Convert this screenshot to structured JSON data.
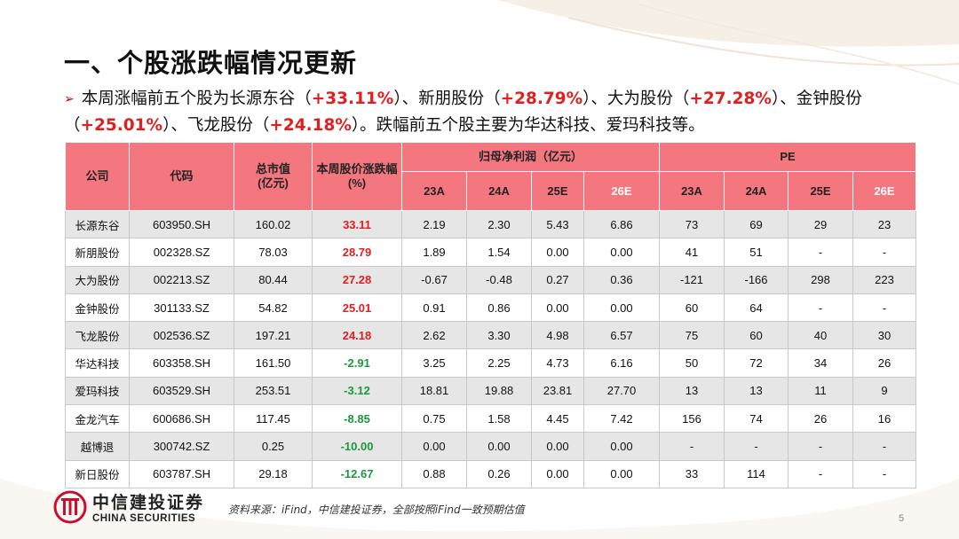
{
  "title": "一、个股涨跌幅情况更新",
  "summary": {
    "bullet": "➢",
    "p1": "本周涨幅前五个股为长源东谷（",
    "v1": "+33.11%",
    "p2": "）、新朋股份（",
    "v2": "+28.79%",
    "p3": "）、大为股份（",
    "v3": "+27.28%",
    "p4": "）、金钟股份（",
    "v4": "+25.01%",
    "p5": "）、飞龙股份（",
    "v5": "+24.18%",
    "p6": "）。跌幅前五个股主要为华达科技、爱玛科技等。"
  },
  "table": {
    "headers": {
      "company": "公司",
      "code": "代码",
      "mktcap": "总市值\n(亿元)",
      "change": "本周股价涨跌幅\n(%)",
      "profit": "归母净利润（亿元）",
      "pe": "PE",
      "years": [
        "23A",
        "24A",
        "25E",
        "26E"
      ]
    },
    "rows": [
      {
        "name": "长源东谷",
        "code": "603950.SH",
        "mktcap": "160.02",
        "change": "33.11",
        "dir": "up",
        "p23": "2.19",
        "p24": "2.30",
        "p25": "5.43",
        "p26": "6.86",
        "pe23": "73",
        "pe24": "69",
        "pe25": "29",
        "pe26": "23"
      },
      {
        "name": "新朋股份",
        "code": "002328.SZ",
        "mktcap": "78.03",
        "change": "28.79",
        "dir": "up",
        "p23": "1.89",
        "p24": "1.54",
        "p25": "0.00",
        "p26": "0.00",
        "pe23": "41",
        "pe24": "51",
        "pe25": "-",
        "pe26": "-"
      },
      {
        "name": "大为股份",
        "code": "002213.SZ",
        "mktcap": "80.44",
        "change": "27.28",
        "dir": "up",
        "p23": "-0.67",
        "p24": "-0.48",
        "p25": "0.27",
        "p26": "0.36",
        "pe23": "-121",
        "pe24": "-166",
        "pe25": "298",
        "pe26": "223"
      },
      {
        "name": "金钟股份",
        "code": "301133.SZ",
        "mktcap": "54.82",
        "change": "25.01",
        "dir": "up",
        "p23": "0.91",
        "p24": "0.86",
        "p25": "0.00",
        "p26": "0.00",
        "pe23": "60",
        "pe24": "64",
        "pe25": "-",
        "pe26": "-"
      },
      {
        "name": "飞龙股份",
        "code": "002536.SZ",
        "mktcap": "197.21",
        "change": "24.18",
        "dir": "up",
        "p23": "2.62",
        "p24": "3.30",
        "p25": "4.98",
        "p26": "6.57",
        "pe23": "75",
        "pe24": "60",
        "pe25": "40",
        "pe26": "30"
      },
      {
        "name": "华达科技",
        "code": "603358.SH",
        "mktcap": "161.50",
        "change": "-2.91",
        "dir": "down",
        "p23": "3.25",
        "p24": "2.25",
        "p25": "4.73",
        "p26": "6.16",
        "pe23": "50",
        "pe24": "72",
        "pe25": "34",
        "pe26": "26"
      },
      {
        "name": "爱玛科技",
        "code": "603529.SH",
        "mktcap": "253.51",
        "change": "-3.12",
        "dir": "down",
        "p23": "18.81",
        "p24": "19.88",
        "p25": "23.81",
        "p26": "27.70",
        "pe23": "13",
        "pe24": "13",
        "pe25": "11",
        "pe26": "9"
      },
      {
        "name": "金龙汽车",
        "code": "600686.SH",
        "mktcap": "117.45",
        "change": "-8.85",
        "dir": "down",
        "p23": "0.75",
        "p24": "1.58",
        "p25": "4.45",
        "p26": "7.42",
        "pe23": "156",
        "pe24": "74",
        "pe25": "26",
        "pe26": "16"
      },
      {
        "name": "越博退",
        "code": "300742.SZ",
        "mktcap": "0.25",
        "change": "-10.00",
        "dir": "down",
        "p23": "0.00",
        "p24": "0.00",
        "p25": "0.00",
        "p26": "0.00",
        "pe23": "-",
        "pe24": "-",
        "pe25": "-",
        "pe26": "-"
      },
      {
        "name": "新日股份",
        "code": "603787.SH",
        "mktcap": "29.18",
        "change": "-12.67",
        "dir": "down",
        "p23": "0.88",
        "p24": "0.26",
        "p25": "0.00",
        "p26": "0.00",
        "pe23": "33",
        "pe24": "114",
        "pe25": "-",
        "pe26": "-"
      }
    ]
  },
  "footer": {
    "logo_cn": "中信建投证券",
    "logo_en": "CHINA SECURITIES",
    "source": "资料来源：iFind，中信建投证券，全部按照iFind一致预期估值",
    "page": "5"
  },
  "colors": {
    "header_bg": "#f4777f",
    "up": "#e02020",
    "down": "#1a9a3a",
    "stripe": "#e6e6e6",
    "logo_red": "#c8102e"
  }
}
